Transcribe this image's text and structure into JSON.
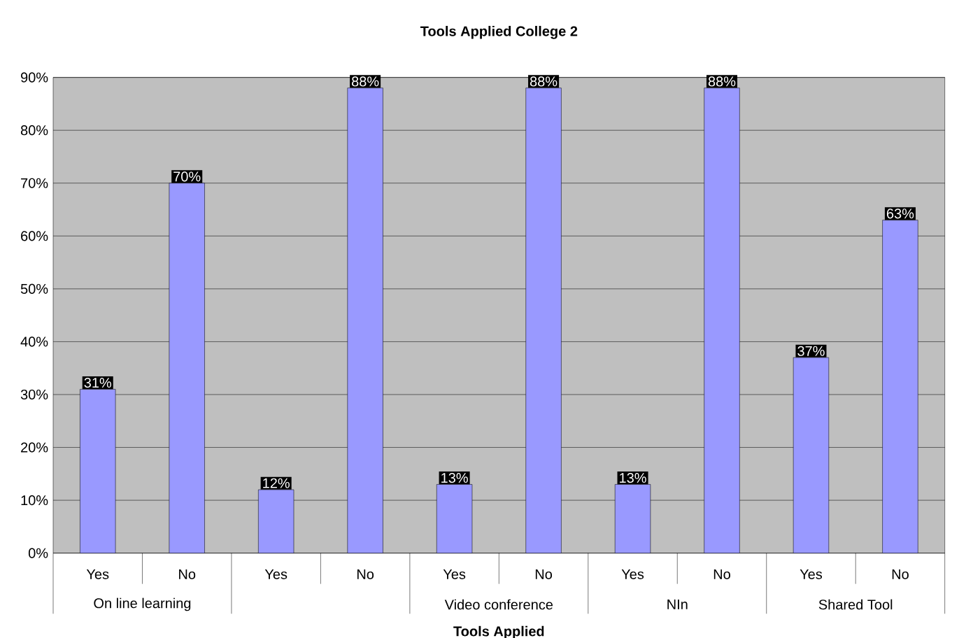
{
  "chart_data": {
    "type": "bar",
    "title": "Tools Applied College 2",
    "xlabel": "Tools Applied",
    "categories": [
      "Yes",
      "No",
      "Yes",
      "No",
      "Yes",
      "No",
      "Yes",
      "No",
      "Yes",
      "No"
    ],
    "values": [
      31,
      70,
      12,
      88,
      13,
      88,
      13,
      88,
      37,
      63
    ],
    "value_labels": [
      "31%",
      "70%",
      "12%",
      "88%",
      "13%",
      "88%",
      "13%",
      "88%",
      "37%",
      "63%"
    ],
    "color": "#9999ff",
    "ylim": [
      0,
      90
    ],
    "yticks": [
      {
        "value": 0,
        "label": "0%"
      },
      {
        "value": 10,
        "label": "10%"
      },
      {
        "value": 20,
        "label": "20%"
      },
      {
        "value": 30,
        "label": "30%"
      },
      {
        "value": 40,
        "label": "40%"
      },
      {
        "value": 50,
        "label": "50%"
      },
      {
        "value": 60,
        "label": "60%"
      },
      {
        "value": 70,
        "label": "70%"
      },
      {
        "value": 80,
        "label": "80%"
      },
      {
        "value": 90,
        "label": "90%"
      }
    ],
    "grid": "y",
    "annotations": [
      "On line learning",
      "Video conference",
      "NIn",
      "Shared Tool"
    ]
  }
}
